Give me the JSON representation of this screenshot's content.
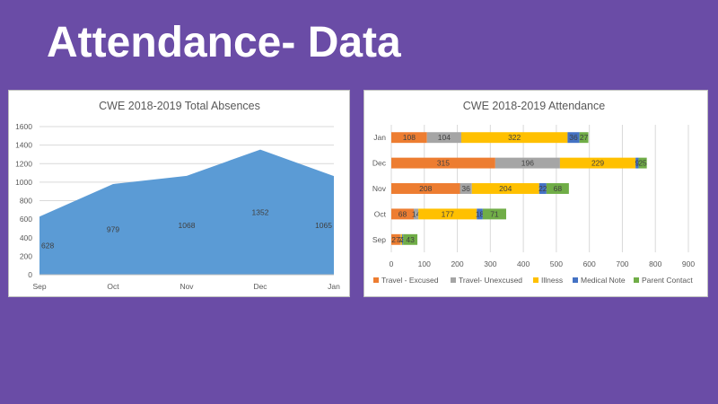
{
  "slide": {
    "title": "Attendance- Data"
  },
  "chart_data": [
    {
      "type": "area",
      "title": "CWE 2018-2019 Total Absences",
      "categories": [
        "Sep",
        "Oct",
        "Nov",
        "Dec",
        "Jan"
      ],
      "series": [
        {
          "values": [
            628,
            979,
            1068,
            1352,
            1065
          ]
        }
      ],
      "data_labels": [
        "628",
        "979",
        "1068",
        "1352",
        "1065"
      ],
      "ylim": [
        0,
        1600
      ],
      "yticks": [
        0,
        200,
        400,
        600,
        800,
        1000,
        1200,
        1400,
        1600
      ],
      "ytick_labels": [
        "0",
        "200",
        "400",
        "600",
        "800",
        "1000",
        "1200",
        "1400",
        "1600"
      ],
      "grid": true,
      "color": "#5b9bd5"
    },
    {
      "type": "bar",
      "orientation": "horizontal",
      "stacked": true,
      "title": "CWE 2018-2019 Attendance",
      "categories": [
        "Jan",
        "Dec",
        "Nov",
        "Oct",
        "Sep"
      ],
      "series": [
        {
          "name": "Travel - Excused",
          "color": "#ed7d31",
          "values": [
            108,
            315,
            208,
            68,
            27
          ]
        },
        {
          "name": "Travel- Unexcused",
          "color": "#a5a5a5",
          "values": [
            104,
            196,
            36,
            14,
            2
          ]
        },
        {
          "name": "Illness",
          "color": "#ffc000",
          "values": [
            322,
            229,
            204,
            177,
            4
          ]
        },
        {
          "name": "Medical Note",
          "color": "#4472c4",
          "values": [
            36,
            9,
            22,
            18,
            3
          ]
        },
        {
          "name": "Parent Contact",
          "color": "#70ad47",
          "values": [
            27,
            25,
            68,
            71,
            43
          ]
        }
      ],
      "data_labels": [
        [
          "108",
          "104",
          "322",
          "36",
          "27"
        ],
        [
          "315",
          "196",
          "229",
          "9",
          "25"
        ],
        [
          "208",
          "36",
          "204",
          "22",
          "68"
        ],
        [
          "68",
          "14",
          "177",
          "18",
          "71"
        ],
        [
          "27",
          "2",
          "4",
          "3",
          "43"
        ]
      ],
      "xlim": [
        0,
        900
      ],
      "xticks": [
        0,
        100,
        200,
        300,
        400,
        500,
        600,
        700,
        800,
        900
      ],
      "xtick_labels": [
        "0",
        "100",
        "200",
        "300",
        "400",
        "500",
        "600",
        "700",
        "800",
        "900"
      ],
      "grid": true,
      "legend_position": "bottom"
    }
  ]
}
